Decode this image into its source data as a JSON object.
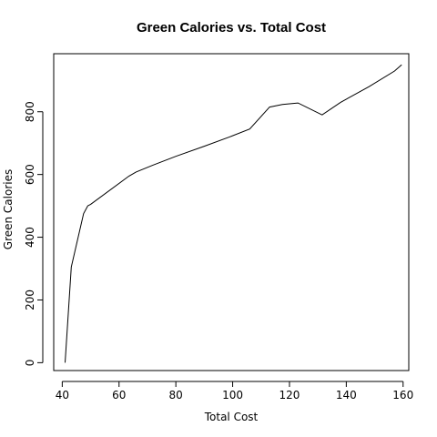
{
  "chart_data": {
    "type": "line",
    "title": "Green Calories vs. Total Cost",
    "xlabel": "Total Cost",
    "ylabel": "Green Calories",
    "xlim": [
      37,
      162
    ],
    "ylim": [
      -25,
      985
    ],
    "xticks": [
      40,
      60,
      80,
      100,
      120,
      140,
      160
    ],
    "yticks": [
      0,
      200,
      400,
      600,
      800
    ],
    "grid": false,
    "series": [
      {
        "x": [
          41.0,
          43.2,
          47.5,
          49.0,
          50.0,
          63.5,
          66.0,
          72.0,
          80.0,
          90.0,
          99.0,
          106.0,
          113.0,
          117.5,
          123.0,
          131.5,
          138.0,
          148.0,
          157.0,
          159.5
        ],
        "y": [
          0,
          305,
          475,
          500,
          505,
          595,
          608,
          630,
          658,
          690,
          720,
          745,
          815,
          823,
          828,
          790,
          830,
          880,
          930,
          950
        ]
      }
    ]
  }
}
